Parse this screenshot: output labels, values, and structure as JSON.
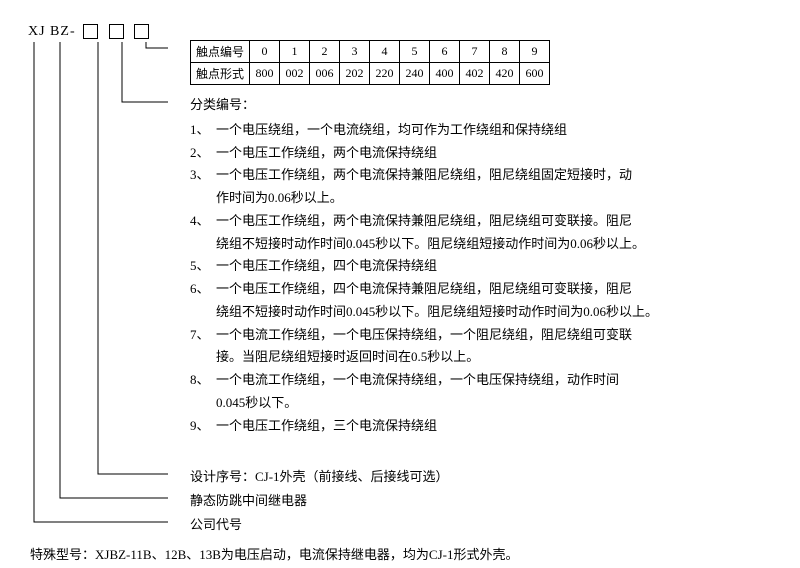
{
  "model": {
    "prefix": "XJ BZ-"
  },
  "table": {
    "row1_label": "触点编号",
    "row2_label": "触点形式",
    "numbers": [
      "0",
      "1",
      "2",
      "3",
      "4",
      "5",
      "6",
      "7",
      "8",
      "9"
    ],
    "forms": [
      "800",
      "002",
      "006",
      "202",
      "220",
      "240",
      "400",
      "402",
      "420",
      "600"
    ]
  },
  "category_title": "分类编号：",
  "items": [
    {
      "n": "1、",
      "t": "一个电压绕组，一个电流绕组，均可作为工作绕组和保持绕组"
    },
    {
      "n": "2、",
      "t": "一个电压工作绕组，两个电流保持绕组"
    },
    {
      "n": "3、",
      "t": "一个电压工作绕组，两个电流保持兼阻尼绕组，阻尼绕组固定短接时，动",
      "t2": "作时间为0.06秒以上。"
    },
    {
      "n": "4、",
      "t": "一个电压工作绕组，两个电流保持兼阻尼绕组，阻尼绕组可变联接。阻尼",
      "t2": "绕组不短接时动作时间0.045秒以下。阻尼绕组短接动作时间为0.06秒以上。"
    },
    {
      "n": "5、",
      "t": "一个电压工作绕组，四个电流保持绕组"
    },
    {
      "n": "6、",
      "t": "一个电压工作绕组，四个电流保持兼阻尼绕组，阻尼绕组可变联接，阻尼",
      "t2": "绕组不短接时动作时间0.045秒以下。阻尼绕组短接时动作时间为0.06秒以上。"
    },
    {
      "n": "7、",
      "t": "一个电流工作绕组，一个电压保持绕组，一个阻尼绕组，阻尼绕组可变联",
      "t2": "接。当阻尼绕组短接时返回时间在0.5秒以上。"
    },
    {
      "n": "8、",
      "t": "一个电流工作绕组，一个电流保持绕组，一个电压保持绕组，动作时间",
      "t2": "0.045秒以下。"
    },
    {
      "n": "9、",
      "t": "一个电压工作绕组，三个电流保持绕组"
    }
  ],
  "tail": {
    "design_seq": "设计序号：CJ-1外壳（前接线、后接线可选）",
    "relay_type": "静态防跳中间继电器",
    "company": "公司代号"
  },
  "footnote": "特殊型号：XJBZ-11B、12B、13B为电压启动，电流保持继电器，均为CJ-1形式外壳。",
  "style": {
    "line_color": "#000000",
    "background": "#ffffff",
    "font_size_body": 13,
    "font_size_table": 12,
    "font_family": "SimSun"
  }
}
